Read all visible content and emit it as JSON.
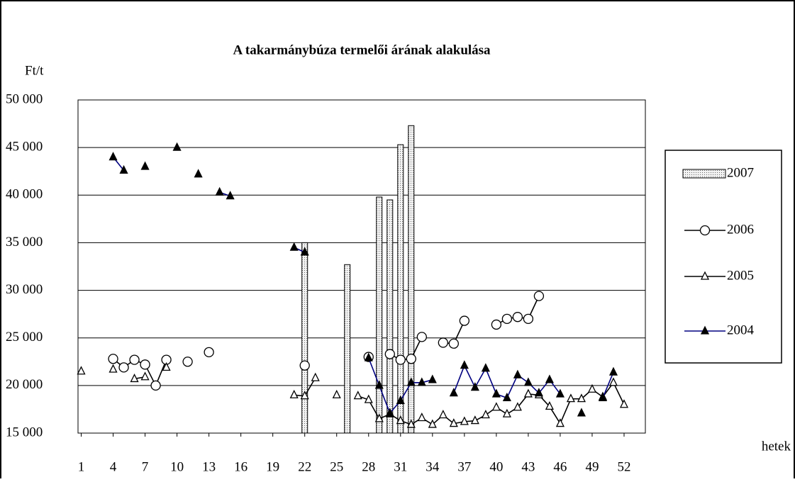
{
  "chart_data": {
    "type": "combo",
    "title": "A takarmánybúza termelői árának alakulása",
    "y_label": "Ft/t",
    "x_label": "hetek",
    "x": [
      1,
      2,
      3,
      4,
      5,
      6,
      7,
      8,
      9,
      10,
      11,
      12,
      13,
      14,
      15,
      16,
      17,
      18,
      19,
      20,
      21,
      22,
      23,
      24,
      25,
      26,
      27,
      28,
      29,
      30,
      31,
      32,
      33,
      34,
      35,
      36,
      37,
      38,
      39,
      40,
      41,
      42,
      43,
      44,
      45,
      46,
      47,
      48,
      49,
      50,
      51,
      52
    ],
    "xlim": [
      0.7,
      54
    ],
    "xticks": [
      1,
      4,
      7,
      10,
      13,
      16,
      19,
      22,
      25,
      28,
      31,
      34,
      37,
      40,
      43,
      46,
      49,
      52
    ],
    "ylim": [
      15000,
      50000
    ],
    "yticks": [
      {
        "value": 15000,
        "label": "15 000"
      },
      {
        "value": 20000,
        "label": "20 000"
      },
      {
        "value": 25000,
        "label": "25 000"
      },
      {
        "value": 30000,
        "label": "30 000"
      },
      {
        "value": 35000,
        "label": "35 000"
      },
      {
        "value": 40000,
        "label": "40 000"
      },
      {
        "value": 45000,
        "label": "45 000"
      },
      {
        "value": 50000,
        "label": "50 000"
      }
    ],
    "grid": true,
    "legend": "right",
    "series": [
      {
        "name": "2007",
        "kind": "bar",
        "color": "#d9d9d9",
        "values": [
          null,
          null,
          null,
          null,
          null,
          null,
          null,
          null,
          null,
          null,
          null,
          null,
          null,
          null,
          null,
          null,
          null,
          null,
          null,
          null,
          null,
          35000,
          null,
          null,
          null,
          32700,
          null,
          null,
          39800,
          39500,
          45300,
          47300,
          null,
          null,
          null,
          null,
          null,
          null,
          null,
          null,
          null,
          null,
          null,
          null,
          null,
          null,
          null,
          null,
          null,
          null,
          null,
          null
        ]
      },
      {
        "name": "2006",
        "kind": "line",
        "marker": "circle",
        "color": "#000000",
        "values": [
          null,
          null,
          null,
          22800,
          21900,
          22700,
          22200,
          20000,
          22700,
          null,
          22500,
          null,
          23500,
          null,
          null,
          null,
          null,
          null,
          null,
          null,
          null,
          22100,
          null,
          null,
          null,
          null,
          null,
          23000,
          null,
          23300,
          22700,
          22800,
          25100,
          null,
          24500,
          24400,
          26800,
          null,
          null,
          26400,
          27000,
          27200,
          27000,
          29400,
          null,
          null,
          null,
          null,
          null,
          null,
          null,
          null
        ]
      },
      {
        "name": "2005",
        "kind": "line",
        "marker": "triangle-open",
        "color": "#000000",
        "values": [
          21500,
          null,
          null,
          21700,
          null,
          20700,
          20900,
          null,
          21900,
          null,
          null,
          null,
          null,
          null,
          null,
          null,
          null,
          null,
          null,
          null,
          19000,
          18900,
          20800,
          null,
          19000,
          null,
          18900,
          18500,
          16500,
          17000,
          16300,
          15900,
          16600,
          15900,
          16900,
          16000,
          16200,
          16300,
          16900,
          17700,
          17000,
          17700,
          19100,
          19000,
          17800,
          16000,
          18600,
          18600,
          19600,
          18800,
          20300,
          18000
        ]
      },
      {
        "name": "2004",
        "kind": "line",
        "marker": "triangle-filled",
        "color": "#000080",
        "values": [
          null,
          null,
          null,
          44000,
          42600,
          null,
          43000,
          null,
          null,
          45000,
          null,
          42200,
          null,
          40300,
          39900,
          null,
          null,
          null,
          null,
          null,
          34500,
          34000,
          null,
          null,
          null,
          null,
          null,
          22900,
          20000,
          17100,
          18400,
          20300,
          20300,
          20600,
          null,
          19200,
          22100,
          19800,
          21800,
          19100,
          18700,
          21100,
          20300,
          19200,
          20600,
          19100,
          null,
          17100,
          null,
          18700,
          21400,
          null
        ]
      }
    ]
  }
}
